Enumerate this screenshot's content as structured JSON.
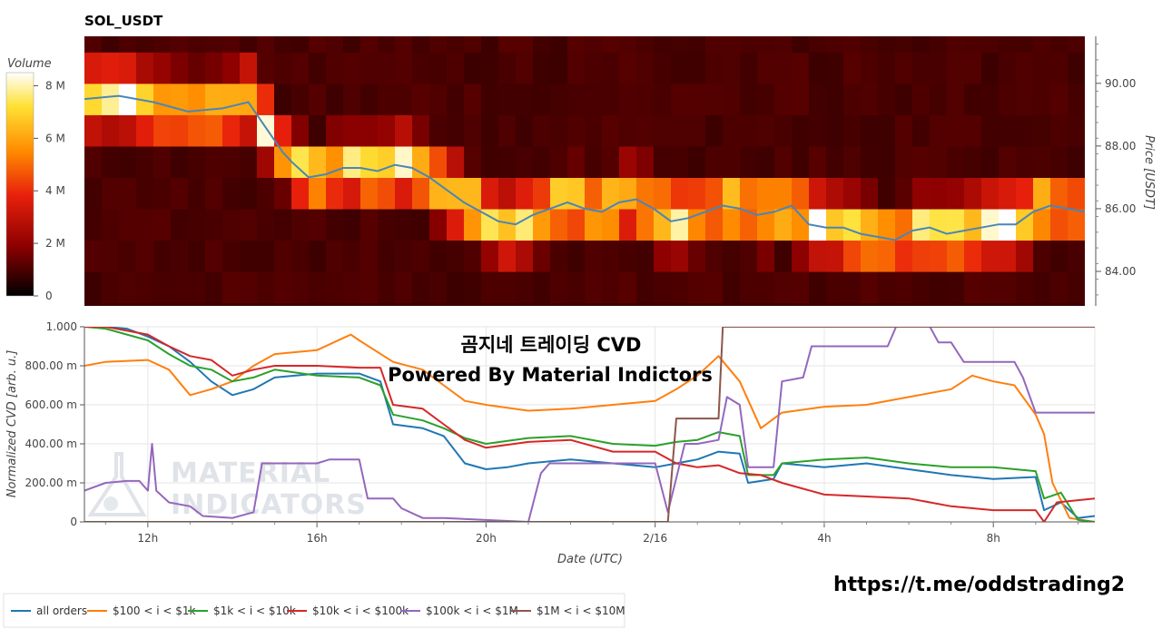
{
  "chart_data": [
    {
      "type": "heatmap",
      "title": "SOL_USDT",
      "ylabel": "Price [USDT]",
      "ylim": [
        82.9,
        91.5
      ],
      "yticks": [
        "84.00",
        "86.00",
        "88.00",
        "90.00"
      ],
      "colorbar": {
        "label": "Volume",
        "ticks": [
          "0",
          "2 M",
          "4 M",
          "6 M",
          "8 M"
        ],
        "range": [
          0,
          8.5
        ]
      },
      "price_bins": [
        83.0,
        84.0,
        85.0,
        86.0,
        87.0,
        88.0,
        89.0,
        90.0,
        91.0
      ],
      "price_line_points": [
        [
          0,
          89.5
        ],
        [
          2,
          89.6
        ],
        [
          4,
          89.4
        ],
        [
          6,
          89.1
        ],
        [
          8,
          89.2
        ],
        [
          9.5,
          89.4
        ],
        [
          10.5,
          88.6
        ],
        [
          11.5,
          87.8
        ],
        [
          12,
          87.5
        ],
        [
          13,
          87.0
        ],
        [
          14,
          87.1
        ],
        [
          15,
          87.3
        ],
        [
          16,
          87.3
        ],
        [
          17,
          87.2
        ],
        [
          18,
          87.4
        ],
        [
          19,
          87.3
        ],
        [
          20,
          87.0
        ],
        [
          21,
          86.6
        ],
        [
          22,
          86.2
        ],
        [
          23,
          85.9
        ],
        [
          24,
          85.6
        ],
        [
          25,
          85.5
        ],
        [
          26,
          85.8
        ],
        [
          27,
          86.0
        ],
        [
          28,
          86.2
        ],
        [
          29,
          86.0
        ],
        [
          30,
          85.9
        ],
        [
          31,
          86.2
        ],
        [
          32,
          86.3
        ],
        [
          33,
          86.0
        ],
        [
          34,
          85.6
        ],
        [
          35,
          85.7
        ],
        [
          36,
          85.9
        ],
        [
          37,
          86.1
        ],
        [
          38,
          86.0
        ],
        [
          39,
          85.8
        ],
        [
          40,
          85.9
        ],
        [
          41,
          86.1
        ],
        [
          42,
          85.5
        ],
        [
          43,
          85.4
        ],
        [
          44,
          85.4
        ],
        [
          45,
          85.2
        ],
        [
          46,
          85.1
        ],
        [
          47,
          85.0
        ],
        [
          48,
          85.3
        ],
        [
          49,
          85.4
        ],
        [
          50,
          85.2
        ],
        [
          51,
          85.3
        ],
        [
          52,
          85.4
        ],
        [
          53,
          85.5
        ],
        [
          54,
          85.5
        ],
        [
          55,
          85.9
        ],
        [
          56,
          86.1
        ],
        [
          57,
          86.0
        ],
        [
          58,
          85.9
        ]
      ],
      "price_line_color": "#4a86b8"
    },
    {
      "type": "line",
      "xlabel": "Date (UTC)",
      "ylabel": "Normalized CVD [arb. u.]",
      "ylim": [
        0,
        1
      ],
      "yticks": [
        "0",
        "200.00 m",
        "400.00 m",
        "600.00 m",
        "800.00 m",
        "1.000"
      ],
      "xlim": [
        10.5,
        34.4
      ],
      "xticks": [
        {
          "x": 12,
          "label": "12h"
        },
        {
          "x": 16,
          "label": "16h"
        },
        {
          "x": 20,
          "label": "20h"
        },
        {
          "x": 24,
          "label": "2/16"
        },
        {
          "x": 28,
          "label": "4h"
        },
        {
          "x": 32,
          "label": "8h"
        }
      ],
      "overlay_title": "곰지네 트레이딩 CVD",
      "overlay_subtitle": "Powered By Material Indictors",
      "watermark": [
        "MATERIAL",
        "INDICATORS"
      ],
      "series": [
        {
          "name": "all orders",
          "color": "#1f77b4",
          "points": [
            [
              10.5,
              1.0
            ],
            [
              11,
              1.0
            ],
            [
              11.5,
              0.99
            ],
            [
              12,
              0.95
            ],
            [
              12.5,
              0.9
            ],
            [
              13,
              0.82
            ],
            [
              13.5,
              0.72
            ],
            [
              14,
              0.65
            ],
            [
              14.5,
              0.68
            ],
            [
              15,
              0.74
            ],
            [
              16,
              0.76
            ],
            [
              17,
              0.76
            ],
            [
              17.5,
              0.72
            ],
            [
              17.8,
              0.5
            ],
            [
              18.5,
              0.48
            ],
            [
              19,
              0.44
            ],
            [
              19.5,
              0.3
            ],
            [
              20,
              0.27
            ],
            [
              20.5,
              0.28
            ],
            [
              21,
              0.3
            ],
            [
              22,
              0.32
            ],
            [
              23,
              0.3
            ],
            [
              24,
              0.28
            ],
            [
              24.5,
              0.3
            ],
            [
              25,
              0.32
            ],
            [
              25.5,
              0.36
            ],
            [
              26,
              0.35
            ],
            [
              26.2,
              0.2
            ],
            [
              26.8,
              0.22
            ],
            [
              27,
              0.3
            ],
            [
              28,
              0.28
            ],
            [
              29,
              0.3
            ],
            [
              30,
              0.27
            ],
            [
              31,
              0.24
            ],
            [
              32,
              0.22
            ],
            [
              33,
              0.23
            ],
            [
              33.2,
              0.06
            ],
            [
              33.6,
              0.1
            ],
            [
              34,
              0.02
            ],
            [
              34.4,
              0.03
            ]
          ]
        },
        {
          "name": "$100 < i < $1k",
          "color": "#ff7f0e",
          "points": [
            [
              10.5,
              0.8
            ],
            [
              11,
              0.82
            ],
            [
              12,
              0.83
            ],
            [
              12.5,
              0.78
            ],
            [
              13,
              0.65
            ],
            [
              13.5,
              0.68
            ],
            [
              14,
              0.72
            ],
            [
              14.5,
              0.8
            ],
            [
              15,
              0.86
            ],
            [
              16,
              0.88
            ],
            [
              16.8,
              0.96
            ],
            [
              17,
              0.93
            ],
            [
              17.8,
              0.82
            ],
            [
              18.5,
              0.78
            ],
            [
              19,
              0.7
            ],
            [
              19.5,
              0.62
            ],
            [
              20,
              0.6
            ],
            [
              21,
              0.57
            ],
            [
              22,
              0.58
            ],
            [
              23,
              0.6
            ],
            [
              24,
              0.62
            ],
            [
              24.5,
              0.68
            ],
            [
              25,
              0.75
            ],
            [
              25.5,
              0.85
            ],
            [
              26,
              0.72
            ],
            [
              26.5,
              0.48
            ],
            [
              27,
              0.56
            ],
            [
              28,
              0.59
            ],
            [
              29,
              0.6
            ],
            [
              30,
              0.64
            ],
            [
              31,
              0.68
            ],
            [
              31.5,
              0.75
            ],
            [
              32,
              0.72
            ],
            [
              32.5,
              0.7
            ],
            [
              33,
              0.55
            ],
            [
              33.2,
              0.45
            ],
            [
              33.4,
              0.2
            ],
            [
              33.8,
              0.02
            ],
            [
              34.4,
              0.0
            ]
          ]
        },
        {
          "name": "$1k < i < $10k",
          "color": "#2ca02c",
          "points": [
            [
              10.5,
              1.0
            ],
            [
              11,
              0.99
            ],
            [
              12,
              0.93
            ],
            [
              12.5,
              0.86
            ],
            [
              13,
              0.8
            ],
            [
              13.5,
              0.78
            ],
            [
              14,
              0.72
            ],
            [
              14.5,
              0.74
            ],
            [
              15,
              0.78
            ],
            [
              16,
              0.75
            ],
            [
              17,
              0.74
            ],
            [
              17.5,
              0.7
            ],
            [
              17.8,
              0.55
            ],
            [
              18.5,
              0.52
            ],
            [
              19,
              0.48
            ],
            [
              19.5,
              0.43
            ],
            [
              20,
              0.4
            ],
            [
              21,
              0.43
            ],
            [
              22,
              0.44
            ],
            [
              23,
              0.4
            ],
            [
              24,
              0.39
            ],
            [
              24.5,
              0.41
            ],
            [
              25,
              0.42
            ],
            [
              25.5,
              0.46
            ],
            [
              26,
              0.44
            ],
            [
              26.2,
              0.24
            ],
            [
              26.8,
              0.24
            ],
            [
              27,
              0.3
            ],
            [
              28,
              0.32
            ],
            [
              29,
              0.33
            ],
            [
              30,
              0.3
            ],
            [
              31,
              0.28
            ],
            [
              32,
              0.28
            ],
            [
              33,
              0.26
            ],
            [
              33.2,
              0.12
            ],
            [
              33.6,
              0.15
            ],
            [
              34,
              0.01
            ],
            [
              34.4,
              0.0
            ]
          ]
        },
        {
          "name": "$10k < i < $100k",
          "color": "#d62728",
          "points": [
            [
              10.5,
              1.0
            ],
            [
              11,
              1.0
            ],
            [
              12,
              0.96
            ],
            [
              12.5,
              0.9
            ],
            [
              13,
              0.85
            ],
            [
              13.5,
              0.83
            ],
            [
              14,
              0.75
            ],
            [
              14.5,
              0.78
            ],
            [
              15,
              0.8
            ],
            [
              16,
              0.8
            ],
            [
              17,
              0.79
            ],
            [
              17.5,
              0.79
            ],
            [
              17.8,
              0.6
            ],
            [
              18.5,
              0.58
            ],
            [
              19,
              0.5
            ],
            [
              19.5,
              0.42
            ],
            [
              20,
              0.38
            ],
            [
              21,
              0.41
            ],
            [
              22,
              0.42
            ],
            [
              23,
              0.36
            ],
            [
              24,
              0.36
            ],
            [
              24.5,
              0.3
            ],
            [
              25,
              0.28
            ],
            [
              25.5,
              0.29
            ],
            [
              26,
              0.25
            ],
            [
              26.5,
              0.24
            ],
            [
              27,
              0.2
            ],
            [
              28,
              0.14
            ],
            [
              29,
              0.13
            ],
            [
              30,
              0.12
            ],
            [
              31,
              0.08
            ],
            [
              32,
              0.06
            ],
            [
              33,
              0.06
            ],
            [
              33.2,
              0.0
            ],
            [
              33.5,
              0.1
            ],
            [
              34.4,
              0.12
            ]
          ]
        },
        {
          "name": "$100k < i < $1M",
          "color": "#9467bd",
          "points": [
            [
              10.5,
              0.16
            ],
            [
              11,
              0.2
            ],
            [
              11.5,
              0.21
            ],
            [
              11.8,
              0.21
            ],
            [
              12,
              0.16
            ],
            [
              12.1,
              0.4
            ],
            [
              12.2,
              0.16
            ],
            [
              12.5,
              0.1
            ],
            [
              13,
              0.08
            ],
            [
              13.3,
              0.03
            ],
            [
              14,
              0.02
            ],
            [
              14.5,
              0.05
            ],
            [
              14.7,
              0.3
            ],
            [
              16,
              0.3
            ],
            [
              16.3,
              0.32
            ],
            [
              17,
              0.32
            ],
            [
              17.2,
              0.12
            ],
            [
              17.8,
              0.12
            ],
            [
              18,
              0.07
            ],
            [
              18.5,
              0.02
            ],
            [
              19,
              0.02
            ],
            [
              20,
              0.01
            ],
            [
              21,
              0.0
            ],
            [
              21.3,
              0.25
            ],
            [
              21.5,
              0.3
            ],
            [
              23,
              0.3
            ],
            [
              24,
              0.3
            ],
            [
              24.3,
              0.05
            ],
            [
              24.7,
              0.4
            ],
            [
              25,
              0.4
            ],
            [
              25.5,
              0.42
            ],
            [
              25.7,
              0.64
            ],
            [
              26,
              0.6
            ],
            [
              26.2,
              0.28
            ],
            [
              26.8,
              0.28
            ],
            [
              27,
              0.72
            ],
            [
              27.5,
              0.74
            ],
            [
              27.7,
              0.9
            ],
            [
              29,
              0.9
            ],
            [
              29.5,
              0.9
            ],
            [
              29.7,
              1.0
            ],
            [
              30.5,
              1.0
            ],
            [
              30.7,
              0.92
            ],
            [
              31,
              0.92
            ],
            [
              31.3,
              0.82
            ],
            [
              32,
              0.82
            ],
            [
              32.5,
              0.82
            ],
            [
              32.7,
              0.74
            ],
            [
              33,
              0.56
            ],
            [
              34.4,
              0.56
            ]
          ]
        },
        {
          "name": "$1M < i < $10M",
          "color": "#8c564b",
          "points": [
            [
              10.5,
              0.0
            ],
            [
              24.3,
              0.0
            ],
            [
              24.5,
              0.53
            ],
            [
              25,
              0.53
            ],
            [
              25.5,
              0.53
            ],
            [
              25.6,
              1.0
            ],
            [
              26,
              1.0
            ],
            [
              34.4,
              1.0
            ]
          ]
        }
      ],
      "legend": [
        "all orders",
        "$100 < i < $1k",
        "$1k < i < $10k",
        "$10k < i < $100k",
        "$100k < i < $1M",
        "$1M < i < $10M"
      ]
    }
  ],
  "footer_url": "https://t.me/oddstrading2"
}
